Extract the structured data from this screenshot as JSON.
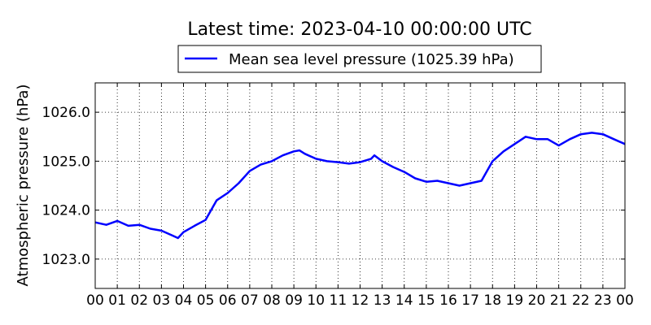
{
  "chart_data": {
    "type": "line",
    "title": "Latest time: 2023-04-10 00:00:00 UTC",
    "xlabel": "",
    "ylabel": "Atmospheric pressure (hPa)",
    "x_ticks": [
      "00",
      "01",
      "02",
      "03",
      "04",
      "05",
      "06",
      "07",
      "08",
      "09",
      "10",
      "11",
      "12",
      "13",
      "14",
      "15",
      "16",
      "17",
      "18",
      "19",
      "20",
      "21",
      "22",
      "23",
      "00"
    ],
    "y_ticks": [
      "1023.0",
      "1024.0",
      "1025.0",
      "1026.0"
    ],
    "xlim": [
      0,
      24
    ],
    "ylim": [
      1022.4,
      1026.6
    ],
    "grid": true,
    "legend_position": "top-center",
    "series": [
      {
        "name": "Mean sea level pressure (1025.39 hPa)",
        "color": "#0000ff",
        "x": [
          0,
          0.5,
          1,
          1.5,
          2,
          2.5,
          3,
          3.5,
          3.75,
          4,
          4.5,
          5,
          5.5,
          6,
          6.5,
          7,
          7.5,
          8,
          8.5,
          9,
          9.25,
          9.5,
          10,
          10.5,
          11,
          11.5,
          12,
          12.5,
          12.65,
          13,
          13.5,
          14,
          14.5,
          15,
          15.5,
          16,
          16.5,
          17,
          17.5,
          18,
          18.5,
          19,
          19.5,
          20,
          20.5,
          21,
          21.5,
          22,
          22.5,
          23,
          23.5,
          24
        ],
        "y": [
          1023.75,
          1023.7,
          1023.78,
          1023.68,
          1023.7,
          1023.62,
          1023.58,
          1023.48,
          1023.43,
          1023.55,
          1023.68,
          1023.8,
          1024.2,
          1024.35,
          1024.55,
          1024.8,
          1024.93,
          1025.0,
          1025.12,
          1025.2,
          1025.22,
          1025.15,
          1025.05,
          1025.0,
          1024.98,
          1024.95,
          1024.98,
          1025.05,
          1025.12,
          1025.0,
          1024.88,
          1024.78,
          1024.65,
          1024.58,
          1024.6,
          1024.55,
          1024.5,
          1024.55,
          1024.6,
          1025.0,
          1025.2,
          1025.35,
          1025.5,
          1025.45,
          1025.45,
          1025.32,
          1025.45,
          1025.55,
          1025.58,
          1025.55,
          1025.45,
          1025.35
        ]
      }
    ]
  }
}
